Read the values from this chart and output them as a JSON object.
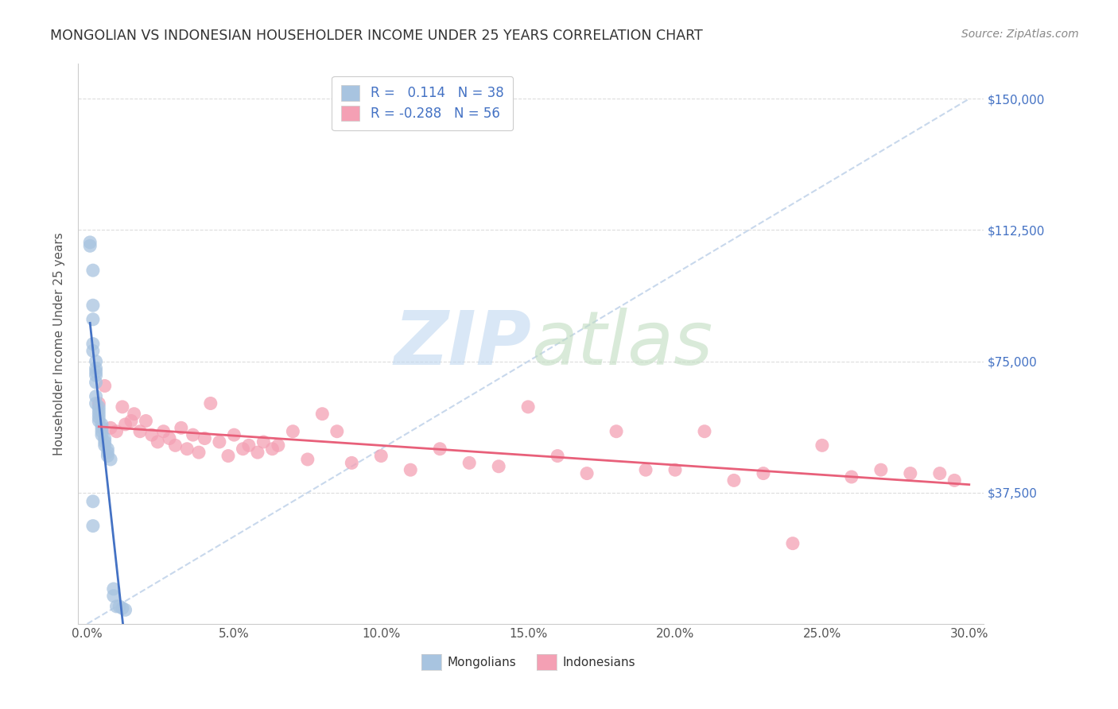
{
  "title": "MONGOLIAN VS INDONESIAN HOUSEHOLDER INCOME UNDER 25 YEARS CORRELATION CHART",
  "source": "Source: ZipAtlas.com",
  "xlabel_ticks": [
    "0.0%",
    "5.0%",
    "10.0%",
    "15.0%",
    "20.0%",
    "25.0%",
    "30.0%"
  ],
  "xlabel_vals": [
    0.0,
    0.05,
    0.1,
    0.15,
    0.2,
    0.25,
    0.3
  ],
  "ylabel": "Householder Income Under 25 years",
  "ylabel_ticks_labels": [
    "$37,500",
    "$75,000",
    "$112,500",
    "$150,000"
  ],
  "ylabel_ticks_vals": [
    37500,
    75000,
    112500,
    150000
  ],
  "ymin": 0,
  "ymax": 160000,
  "xmin": -0.003,
  "xmax": 0.305,
  "mongolian_R": "0.114",
  "mongolian_N": "38",
  "indonesian_R": "-0.288",
  "indonesian_N": "56",
  "mongolian_color": "#a8c4e0",
  "indonesian_color": "#f4a0b4",
  "mongolian_line_color": "#4472c4",
  "indonesian_line_color": "#e8607a",
  "diagonal_line_color": "#c8d8ec",
  "background_color": "#ffffff",
  "grid_color": "#d9d9d9",
  "mongolians_scatter_x": [
    0.001,
    0.001,
    0.002,
    0.002,
    0.002,
    0.002,
    0.002,
    0.002,
    0.002,
    0.003,
    0.003,
    0.003,
    0.003,
    0.003,
    0.003,
    0.003,
    0.004,
    0.004,
    0.004,
    0.004,
    0.004,
    0.005,
    0.005,
    0.005,
    0.005,
    0.006,
    0.006,
    0.006,
    0.007,
    0.007,
    0.007,
    0.008,
    0.009,
    0.009,
    0.01,
    0.011,
    0.012,
    0.013
  ],
  "mongolians_scatter_y": [
    109000,
    108000,
    101000,
    91000,
    87000,
    80000,
    78000,
    35000,
    28000,
    75000,
    73000,
    72000,
    71000,
    69000,
    65000,
    63000,
    62000,
    61000,
    60000,
    59000,
    58000,
    57000,
    56000,
    55000,
    54000,
    53000,
    52000,
    51000,
    50000,
    49000,
    48000,
    47000,
    10000,
    8000,
    5000,
    5000,
    4500,
    4000
  ],
  "indonesians_scatter_x": [
    0.004,
    0.006,
    0.008,
    0.01,
    0.012,
    0.013,
    0.015,
    0.016,
    0.018,
    0.02,
    0.022,
    0.024,
    0.026,
    0.028,
    0.03,
    0.032,
    0.034,
    0.036,
    0.038,
    0.04,
    0.042,
    0.045,
    0.048,
    0.05,
    0.053,
    0.055,
    0.058,
    0.06,
    0.063,
    0.065,
    0.07,
    0.075,
    0.08,
    0.085,
    0.09,
    0.1,
    0.11,
    0.12,
    0.13,
    0.14,
    0.15,
    0.16,
    0.17,
    0.18,
    0.19,
    0.2,
    0.21,
    0.22,
    0.23,
    0.24,
    0.25,
    0.26,
    0.27,
    0.28,
    0.29,
    0.295
  ],
  "indonesians_scatter_y": [
    63000,
    68000,
    56000,
    55000,
    62000,
    57000,
    58000,
    60000,
    55000,
    58000,
    54000,
    52000,
    55000,
    53000,
    51000,
    56000,
    50000,
    54000,
    49000,
    53000,
    63000,
    52000,
    48000,
    54000,
    50000,
    51000,
    49000,
    52000,
    50000,
    51000,
    55000,
    47000,
    60000,
    55000,
    46000,
    48000,
    44000,
    50000,
    46000,
    45000,
    62000,
    48000,
    43000,
    55000,
    44000,
    44000,
    55000,
    41000,
    43000,
    23000,
    51000,
    42000,
    44000,
    43000,
    43000,
    41000
  ]
}
